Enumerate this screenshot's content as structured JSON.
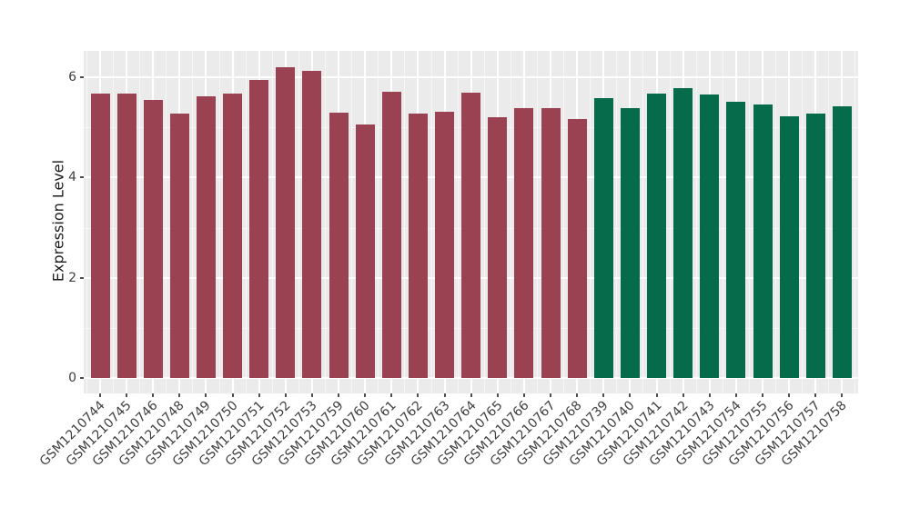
{
  "chart_data": {
    "type": "bar",
    "title": "",
    "xlabel": "",
    "ylabel": "Expression Level",
    "ylim": [
      0,
      6.53
    ],
    "yticks": [
      0,
      2,
      4,
      6
    ],
    "yticks_minor": [
      1,
      3,
      5
    ],
    "grid": "white major and minor gridlines on gray panel (ggplot style)",
    "legend_position": "none",
    "panel_background": "#EBEBEB",
    "figure_background": "#FFFFFF",
    "group_colors": {
      "groupA": "#9A4152",
      "groupB": "#056B4A"
    },
    "categories": [
      "GSM1210744",
      "GSM1210745",
      "GSM1210746",
      "GSM1210748",
      "GSM1210749",
      "GSM1210750",
      "GSM1210751",
      "GSM1210752",
      "GSM1210753",
      "GSM1210759",
      "GSM1210760",
      "GSM1210761",
      "GSM1210762",
      "GSM1210763",
      "GSM1210764",
      "GSM1210765",
      "GSM1210766",
      "GSM1210767",
      "GSM1210768",
      "GSM1210739",
      "GSM1210740",
      "GSM1210741",
      "GSM1210742",
      "GSM1210743",
      "GSM1210754",
      "GSM1210755",
      "GSM1210756",
      "GSM1210757",
      "GSM1210758"
    ],
    "values": [
      5.68,
      5.68,
      5.54,
      5.28,
      5.63,
      5.68,
      5.95,
      6.2,
      6.13,
      5.3,
      5.05,
      5.71,
      5.27,
      5.31,
      5.69,
      5.2,
      5.38,
      5.39,
      5.17,
      5.58,
      5.39,
      5.68,
      5.79,
      5.66,
      5.51,
      5.45,
      5.22,
      5.28,
      5.42
    ],
    "bar_groups": [
      "groupA",
      "groupA",
      "groupA",
      "groupA",
      "groupA",
      "groupA",
      "groupA",
      "groupA",
      "groupA",
      "groupA",
      "groupA",
      "groupA",
      "groupA",
      "groupA",
      "groupA",
      "groupA",
      "groupA",
      "groupA",
      "groupA",
      "groupB",
      "groupB",
      "groupB",
      "groupB",
      "groupB",
      "groupB",
      "groupB",
      "groupB",
      "groupB",
      "groupB"
    ]
  }
}
